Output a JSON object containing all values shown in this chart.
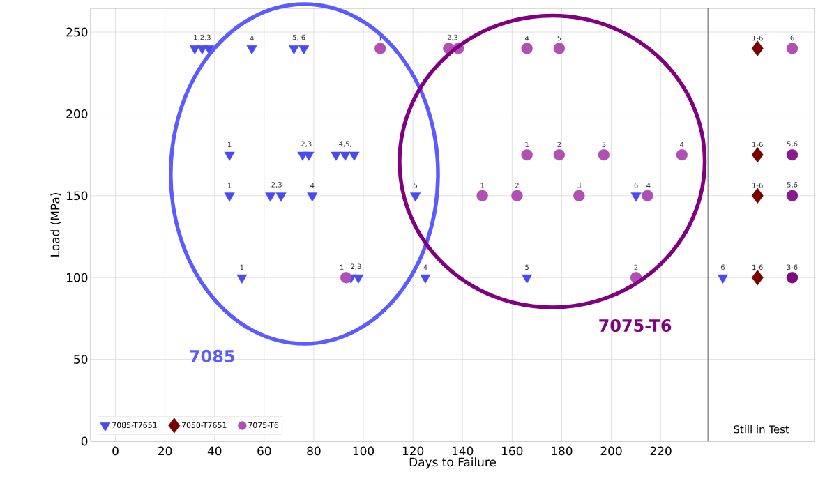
{
  "chart_data": {
    "type": "scatter",
    "xlabel": "Days to Failure",
    "ylabel": "Load (MPa)",
    "xlim": [
      -10,
      282
    ],
    "ylim": [
      0,
      264.5
    ],
    "xticks": [
      0,
      20,
      40,
      60,
      80,
      100,
      120,
      140,
      160,
      180,
      200,
      220
    ],
    "yticks": [
      0,
      50,
      100,
      150,
      200,
      250
    ],
    "grid": true,
    "legend": "bottom left",
    "series": [
      {
        "name": "7085-T7651",
        "marker": "triangle",
        "color": "#4a4af0",
        "x": [
          32,
          35,
          37.7,
          55,
          72,
          76,
          46,
          75.5,
          78,
          89,
          92.7,
          96.3,
          46,
          62.5,
          66.8,
          79.4,
          121,
          210,
          51,
          95,
          98,
          125,
          166,
          245
        ],
        "values": [
          240,
          240,
          240,
          240,
          240,
          240,
          175,
          175,
          175,
          175,
          175,
          175,
          150,
          150,
          150,
          150,
          150,
          150,
          100,
          100,
          100,
          100,
          100,
          100
        ]
      },
      {
        "name": "7050-T7651",
        "marker": "diamond",
        "color": "#7a0000",
        "x": [
          259,
          259,
          259,
          259
        ],
        "values": [
          240,
          175,
          150,
          100
        ]
      },
      {
        "name": "7075-T6",
        "marker": "circle",
        "color": "#b04fb4",
        "x": [
          106.8,
          134.4,
          138.3,
          166,
          179,
          273,
          166,
          179,
          197,
          228.5,
          273,
          148,
          162,
          187,
          214.6,
          273,
          93,
          210,
          273
        ],
        "values": [
          240,
          240,
          240,
          240,
          240,
          240,
          175,
          175,
          175,
          175,
          175,
          150,
          150,
          150,
          150,
          150,
          100,
          100,
          100
        ],
        "colors": [
          "#b04fb4",
          "#b04fb4",
          "#b04fb4",
          "#b04fb4",
          "#b04fb4",
          "#b04fb4",
          "#b04fb4",
          "#b04fb4",
          "#b04fb4",
          "#b04fb4",
          "#8a1a8e",
          "#b04fb4",
          "#b04fb4",
          "#b04fb4",
          "#b04fb4",
          "#8a1a8e",
          "#b04fb4",
          "#b04fb4",
          "#7e0a82"
        ]
      }
    ],
    "ref_lines": [
      {
        "axis": "x",
        "value": 239,
        "label": "Still in Test",
        "color": "#555555"
      }
    ],
    "annotations": [
      {
        "text": "1,2,3",
        "x": 35,
        "y": 240
      },
      {
        "text": "4",
        "x": 55,
        "y": 240
      },
      {
        "text": "5, 6",
        "x": 74,
        "y": 240
      },
      {
        "text": "1",
        "x": 106.8,
        "y": 240
      },
      {
        "text": "2,3",
        "x": 136,
        "y": 240
      },
      {
        "text": "4",
        "x": 166,
        "y": 240
      },
      {
        "text": "5",
        "x": 179,
        "y": 240
      },
      {
        "text": "1-6",
        "x": 259,
        "y": 240
      },
      {
        "text": "6",
        "x": 273,
        "y": 240
      },
      {
        "text": "1",
        "x": 46,
        "y": 175
      },
      {
        "text": "2,3",
        "x": 77,
        "y": 175
      },
      {
        "text": "4,5,",
        "x": 92.7,
        "y": 175
      },
      {
        "text": "1",
        "x": 166,
        "y": 175
      },
      {
        "text": "2",
        "x": 179,
        "y": 175
      },
      {
        "text": "3",
        "x": 197,
        "y": 175
      },
      {
        "text": "4",
        "x": 228.5,
        "y": 175
      },
      {
        "text": "1-6",
        "x": 259,
        "y": 175
      },
      {
        "text": "5,6",
        "x": 273,
        "y": 175
      },
      {
        "text": "1",
        "x": 46,
        "y": 150
      },
      {
        "text": "2,3",
        "x": 65,
        "y": 150
      },
      {
        "text": "4",
        "x": 79.4,
        "y": 150
      },
      {
        "text": "5",
        "x": 121,
        "y": 150
      },
      {
        "text": "1",
        "x": 148,
        "y": 150
      },
      {
        "text": "2",
        "x": 162,
        "y": 150
      },
      {
        "text": "3",
        "x": 187,
        "y": 150
      },
      {
        "text": "6",
        "x": 210,
        "y": 150
      },
      {
        "text": "4",
        "x": 215,
        "y": 150
      },
      {
        "text": "1-6",
        "x": 259,
        "y": 150
      },
      {
        "text": "5,6",
        "x": 273,
        "y": 150
      },
      {
        "text": "1",
        "x": 51,
        "y": 100
      },
      {
        "text": "1",
        "x": 91.3,
        "y": 100
      },
      {
        "text": "2,3",
        "x": 97,
        "y": 100
      },
      {
        "text": "4",
        "x": 125,
        "y": 100
      },
      {
        "text": "5",
        "x": 166,
        "y": 100
      },
      {
        "text": "2",
        "x": 210,
        "y": 100
      },
      {
        "text": "6",
        "x": 245,
        "y": 100
      },
      {
        "text": "1-6",
        "x": 259,
        "y": 100
      },
      {
        "text": "3-6",
        "x": 273,
        "y": 100
      },
      "7085",
      "7075-T6"
    ]
  }
}
